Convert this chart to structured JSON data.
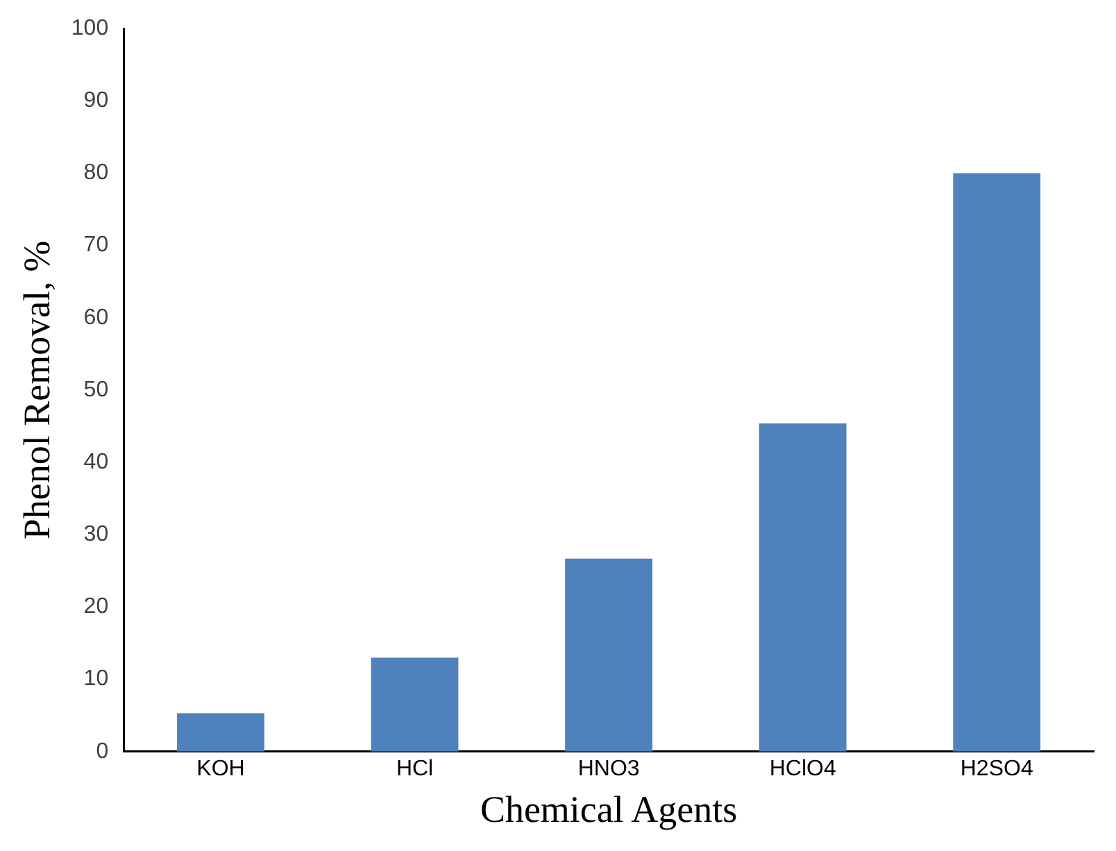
{
  "chart_data": {
    "type": "bar",
    "xlabel": "Chemical Agents",
    "ylabel": "Phenol Removal, %",
    "categories": [
      "KOH",
      "HCl",
      "HNO3",
      "HClO4",
      "H2SO4"
    ],
    "values": [
      5.3,
      13,
      26.7,
      45.4,
      80
    ],
    "color": "#4f81bd",
    "ylim": [
      0,
      100
    ],
    "yticks": [
      0,
      10,
      20,
      30,
      40,
      50,
      60,
      70,
      80,
      90,
      100
    ],
    "grid": false,
    "legend": false
  }
}
